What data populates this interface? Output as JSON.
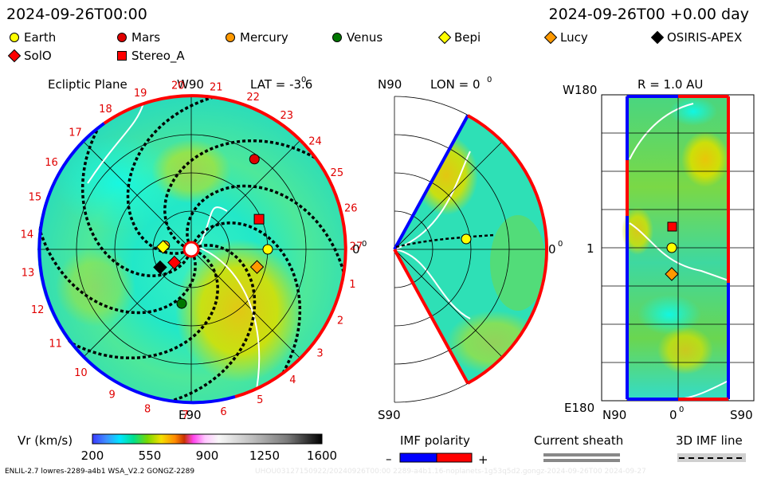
{
  "header": {
    "datetime": "2024-09-26T00:00",
    "datetime_offset": "2024-09-26T00 +0.00 day"
  },
  "legend": [
    {
      "name": "Earth",
      "shape": "circle",
      "color": "#ffff00"
    },
    {
      "name": "Mars",
      "shape": "circle",
      "color": "#e00000"
    },
    {
      "name": "Mercury",
      "shape": "circle",
      "color": "#ff9900"
    },
    {
      "name": "Venus",
      "shape": "circle",
      "color": "#007700"
    },
    {
      "name": "Bepi",
      "shape": "diamond",
      "color": "#ffff00"
    },
    {
      "name": "Lucy",
      "shape": "diamond",
      "color": "#ff9900"
    },
    {
      "name": "OSIRIS-APEX",
      "shape": "diamond",
      "color": "#000000"
    },
    {
      "name": "SolO",
      "shape": "diamond",
      "color": "#ff0000"
    },
    {
      "name": "Stereo_A",
      "shape": "square",
      "color": "#ff0000"
    }
  ],
  "panels": {
    "ecliptic": {
      "title": "Ecliptic Plane",
      "lat": "LAT = -3.6",
      "deg": "0",
      "top_label": "W90",
      "bottom_label": "E90",
      "right_label": "0",
      "carrington_ticks": [
        "1",
        "2",
        "3",
        "4",
        "5",
        "6",
        "7",
        "8",
        "9",
        "10",
        "11",
        "12",
        "13",
        "14",
        "15",
        "16",
        "17",
        "18",
        "19",
        "20",
        "21",
        "22",
        "23",
        "24",
        "25",
        "26",
        "27"
      ]
    },
    "meridional": {
      "top_label": "N90",
      "lon": "LON = 0",
      "deg": "0",
      "bottom_label": "S90",
      "right_label": "0"
    },
    "map": {
      "title": "R = 1.0 AU",
      "y_top": "W180",
      "y_mid": "1",
      "y_bottom": "E180",
      "x_left": "N90",
      "x_mid": "0",
      "x_right": "S90"
    }
  },
  "colorbar": {
    "label": "Vr (km/s)",
    "ticks": [
      "200",
      "550",
      "900",
      "1250",
      "1600"
    ],
    "range": [
      200,
      1600
    ]
  },
  "imf": {
    "label": "IMF polarity",
    "minus": "–",
    "plus": "+",
    "negative_color": "#0000ff",
    "positive_color": "#ff0000"
  },
  "sheath_label": "Current sheath",
  "imf3d_label": "3D IMF line",
  "footer": {
    "model": "ENLIL-2.7 lowres-2289-a4b1 WSA_V2.2 GONGZ-2289",
    "run_info": "UHOU03127150922/20240926T00:00 2289-a4b1.16-noplanets-1g53q5d2.gongz-2024-09-26T00 2024-09-27"
  },
  "chart_data": {
    "type": "heatmap",
    "quantity": "Vr (km/s)",
    "range": [
      200,
      1600
    ],
    "objects": [
      {
        "name": "Earth",
        "lon_deg": 0,
        "r_au": 1.0
      },
      {
        "name": "Mars",
        "lon_deg": 55,
        "r_au": 1.44
      },
      {
        "name": "Mercury",
        "lon_deg": 172,
        "r_au": 0.35
      },
      {
        "name": "Venus",
        "lon_deg": 260,
        "r_au": 0.72
      },
      {
        "name": "Bepi",
        "lon_deg": 175,
        "r_au": 0.37
      },
      {
        "name": "Lucy",
        "lon_deg": 345,
        "r_au": 0.89
      },
      {
        "name": "OSIRIS-APEX",
        "lon_deg": 210,
        "r_au": 0.47
      },
      {
        "name": "SolO",
        "lon_deg": 218,
        "r_au": 0.28
      },
      {
        "name": "Stereo_A",
        "lon_deg": 24,
        "r_au": 0.97
      }
    ]
  }
}
